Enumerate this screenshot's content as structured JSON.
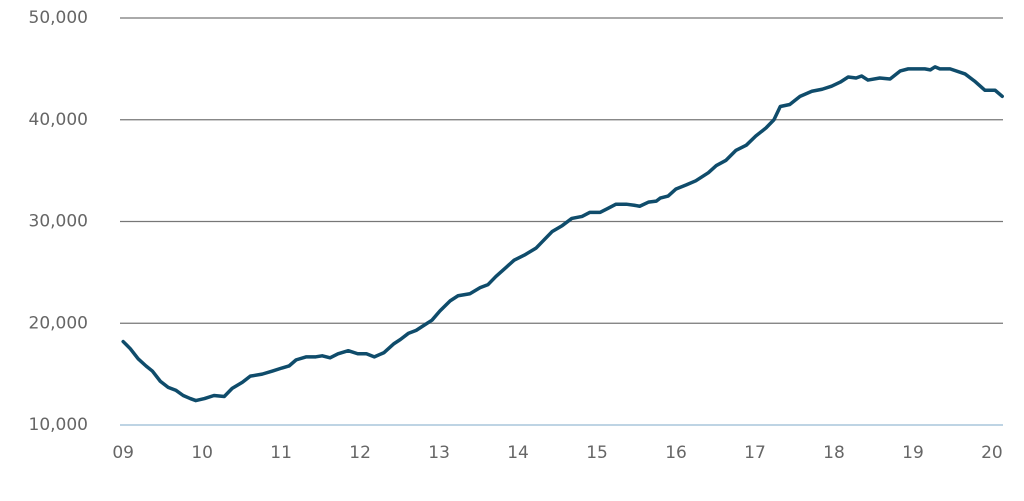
{
  "chart_data": {
    "type": "line",
    "x": [
      2009.0,
      2009.09,
      2009.19,
      2009.29,
      2009.37,
      2009.47,
      2009.57,
      2009.67,
      2009.76,
      2009.85,
      2009.92,
      2010.03,
      2010.15,
      2010.28,
      2010.38,
      2010.51,
      2010.61,
      2010.76,
      2010.89,
      2011.01,
      2011.1,
      2011.19,
      2011.32,
      2011.44,
      2011.52,
      2011.62,
      2011.72,
      2011.85,
      2011.97,
      2012.08,
      2012.18,
      2012.3,
      2012.43,
      2012.51,
      2012.61,
      2012.71,
      2012.81,
      2012.91,
      2013.01,
      2013.14,
      2013.24,
      2013.39,
      2013.52,
      2013.62,
      2013.72,
      2013.85,
      2013.95,
      2014.08,
      2014.23,
      2014.33,
      2014.43,
      2014.56,
      2014.68,
      2014.81,
      2014.91,
      2015.04,
      2015.14,
      2015.24,
      2015.37,
      2015.47,
      2015.54,
      2015.65,
      2015.75,
      2015.8,
      2015.9,
      2016.0,
      2016.13,
      2016.25,
      2016.41,
      2016.51,
      2016.63,
      2016.76,
      2016.89,
      2017.01,
      2017.14,
      2017.24,
      2017.32,
      2017.44,
      2017.57,
      2017.72,
      2017.85,
      2017.97,
      2018.08,
      2018.18,
      2018.28,
      2018.35,
      2018.43,
      2018.58,
      2018.71,
      2018.84,
      2018.94,
      2019.15,
      2019.22,
      2019.28,
      2019.34,
      2019.47,
      2019.66,
      2019.78,
      2019.91,
      2020.04,
      2020.13
    ],
    "series": [
      {
        "color": "#0f4c6b",
        "values": [
          18200,
          17500,
          16500,
          15800,
          15300,
          14300,
          13700,
          13400,
          12900,
          12600,
          12400,
          12600,
          12900,
          12800,
          13600,
          14200,
          14800,
          15000,
          15300,
          15600,
          15800,
          16400,
          16700,
          16700,
          16800,
          16600,
          17000,
          17300,
          17000,
          17000,
          16700,
          17100,
          18000,
          18400,
          19000,
          19300,
          19800,
          20300,
          21200,
          22200,
          22700,
          22900,
          23500,
          23800,
          24600,
          25500,
          26200,
          26700,
          27400,
          28200,
          29000,
          29600,
          30300,
          30500,
          30900,
          30900,
          31300,
          31700,
          31700,
          31600,
          31500,
          31900,
          32000,
          32300,
          32500,
          33200,
          33600,
          34000,
          34800,
          35500,
          36000,
          37000,
          37500,
          38400,
          39200,
          40000,
          41300,
          41500,
          42300,
          42800,
          43000,
          43300,
          43700,
          44200,
          44100,
          44300,
          43900,
          44100,
          44000,
          44800,
          45000,
          45000,
          44900,
          45200,
          45000,
          45000,
          44500,
          43800,
          42900,
          42900,
          42300
        ]
      }
    ],
    "xlim": [
      2008.96,
      2020.14
    ],
    "xticks": [
      {
        "value": 2009,
        "label": "09"
      },
      {
        "value": 2010,
        "label": "10"
      },
      {
        "value": 2011,
        "label": "11"
      },
      {
        "value": 2012,
        "label": "12"
      },
      {
        "value": 2013,
        "label": "13"
      },
      {
        "value": 2014,
        "label": "14"
      },
      {
        "value": 2015,
        "label": "15"
      },
      {
        "value": 2016,
        "label": "16"
      },
      {
        "value": 2017,
        "label": "17"
      },
      {
        "value": 2018,
        "label": "18"
      },
      {
        "value": 2019,
        "label": "19"
      },
      {
        "value": 2020,
        "label": "20"
      }
    ],
    "ylim": [
      10000,
      50000
    ],
    "yticks": [
      {
        "value": 10000,
        "label": "10,000"
      },
      {
        "value": 20000,
        "label": "20,000"
      },
      {
        "value": 30000,
        "label": "30,000"
      },
      {
        "value": 40000,
        "label": "40,000"
      },
      {
        "value": 50000,
        "label": "50,000"
      }
    ],
    "grid": true
  }
}
